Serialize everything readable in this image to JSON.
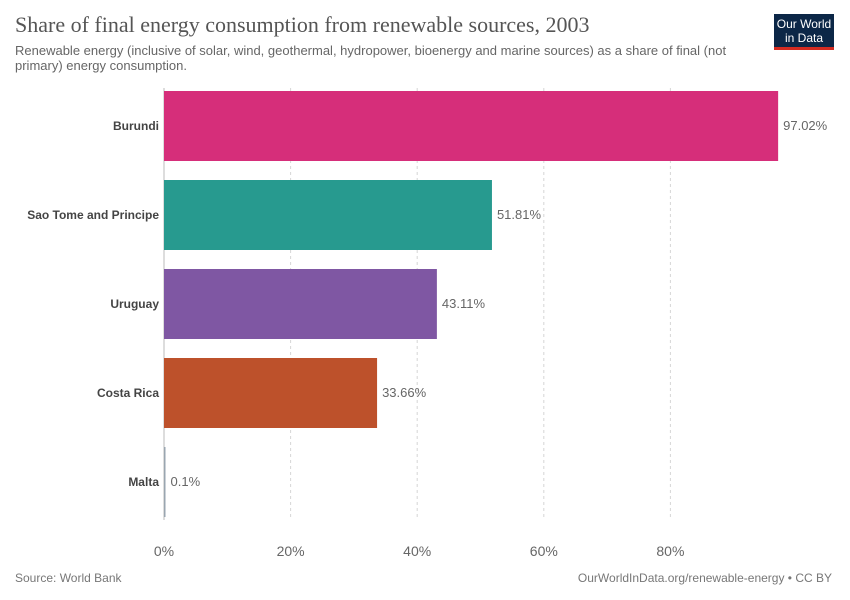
{
  "header": {
    "title": "Share of final energy consumption from renewable sources, 2003",
    "subtitle": "Renewable energy (inclusive of solar, wind, geothermal, hydropower, bioenergy and marine sources) as a share of final (not primary) energy consumption."
  },
  "logo": {
    "line1": "Our World",
    "line2": "in Data"
  },
  "footer": {
    "source": "Source: World Bank",
    "credit": "OurWorldInData.org/renewable-energy • CC BY"
  },
  "chart_data": {
    "type": "bar",
    "orientation": "horizontal",
    "categories": [
      "Burundi",
      "Sao Tome and Principe",
      "Uruguay",
      "Costa Rica",
      "Malta"
    ],
    "values": [
      97.02,
      51.81,
      43.11,
      33.66,
      0.1
    ],
    "value_labels": [
      "97.02%",
      "51.81%",
      "43.11%",
      "33.66%",
      "0.1%"
    ],
    "colors": [
      "#d62e7a",
      "#279a8f",
      "#7f57a3",
      "#bd512b",
      "#9aa6b0"
    ],
    "xlim": [
      0,
      100
    ],
    "xticks": [
      0,
      20,
      40,
      60,
      80
    ],
    "xtick_labels": [
      "0%",
      "20%",
      "40%",
      "60%",
      "80%"
    ],
    "grid": true
  }
}
